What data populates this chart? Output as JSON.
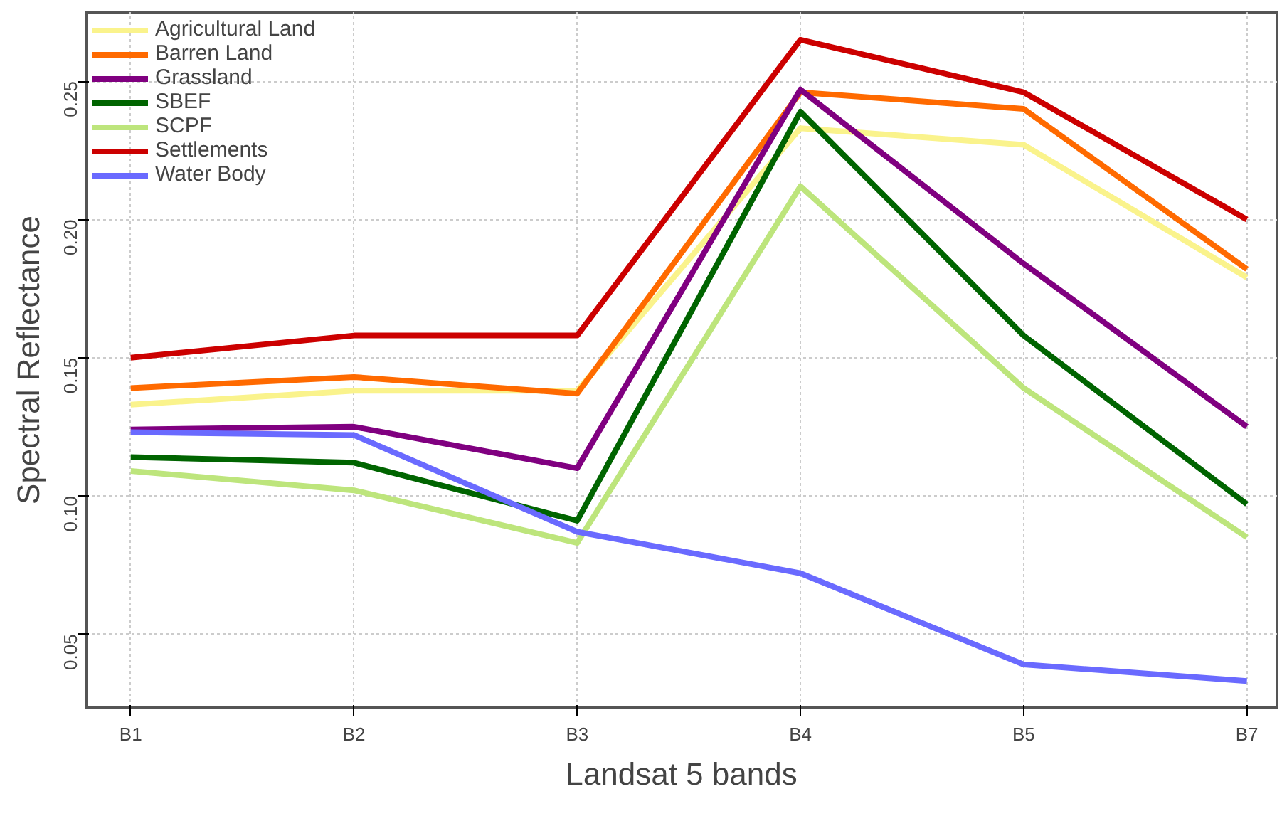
{
  "chart_data": {
    "type": "line",
    "xlabel": "Landsat 5 bands",
    "ylabel": "Spectral Reflectance",
    "categories": [
      "B1",
      "B2",
      "B3",
      "B4",
      "B5",
      "B7"
    ],
    "ylim": [
      0.0233,
      0.275
    ],
    "yticks": [
      0.05,
      {
        "value": 0.1,
        "label": "0.10"
      },
      0.15,
      {
        "value": 0.2,
        "label": "0.20"
      },
      0.25
    ],
    "grid": true,
    "legend": "top left",
    "line_style": "solid",
    "series": [
      {
        "name": "Agricultural Land",
        "color": "#faf38c",
        "values": [
          0.133,
          0.138,
          0.138,
          0.233,
          0.227,
          0.179
        ]
      },
      {
        "name": "Barren Land",
        "color": "#ff6a00",
        "values": [
          0.139,
          0.143,
          0.137,
          0.246,
          0.24,
          0.182
        ]
      },
      {
        "name": "Grassland",
        "color": "#800080",
        "values": [
          0.124,
          0.125,
          0.11,
          0.247,
          0.184,
          0.125
        ]
      },
      {
        "name": "SBEF",
        "color": "#006400",
        "values": [
          0.114,
          0.112,
          0.091,
          0.239,
          0.158,
          0.097
        ]
      },
      {
        "name": "SCPF",
        "color": "#bde57c",
        "values": [
          0.109,
          0.102,
          0.083,
          0.212,
          0.139,
          0.085
        ]
      },
      {
        "name": "Settlements",
        "color": "#cc0000",
        "values": [
          0.15,
          0.158,
          0.158,
          0.265,
          0.246,
          0.2
        ]
      },
      {
        "name": "Water Body",
        "color": "#6a6aff",
        "values": [
          0.123,
          0.122,
          0.087,
          0.072,
          0.039,
          0.033
        ]
      }
    ]
  }
}
